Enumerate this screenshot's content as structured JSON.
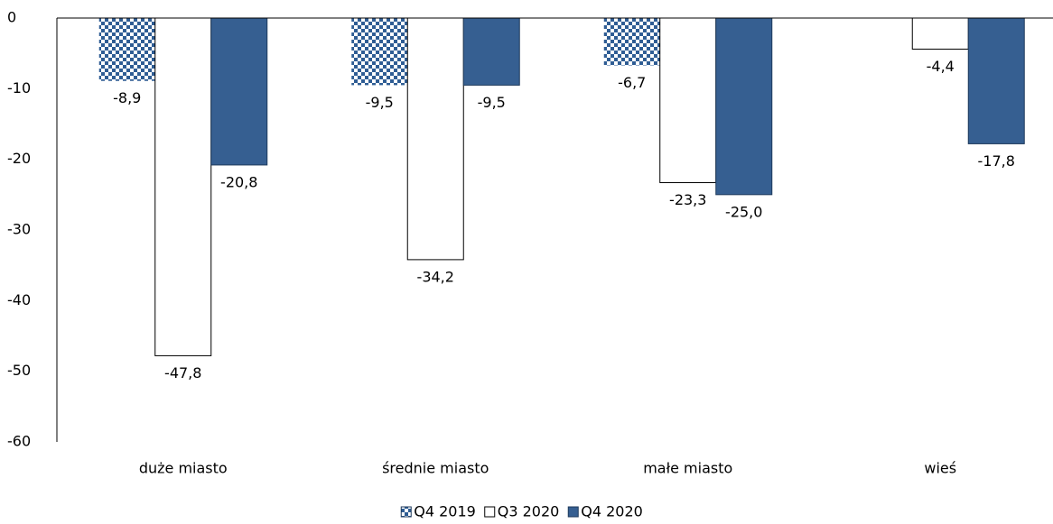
{
  "chart_data": {
    "type": "bar",
    "categories": [
      "duże miasto",
      "średnie miasto",
      "małe miasto",
      "wieś"
    ],
    "series": [
      {
        "name": "Q4 2019",
        "color": "#2f5d94",
        "pattern": "checkerboard",
        "values": [
          -8.9,
          -9.5,
          -6.7,
          null
        ],
        "value_labels": [
          "-8,9",
          "-9,5",
          "-6,7",
          null
        ]
      },
      {
        "name": "Q3 2020",
        "color": "#ffffff",
        "values": [
          -47.8,
          -34.2,
          -23.3,
          -4.4
        ],
        "value_labels": [
          "-47,8",
          "-34,2",
          "-23,3",
          "-4,4"
        ]
      },
      {
        "name": "Q4 2020",
        "color": "#365f91",
        "values": [
          -20.8,
          -9.5,
          -25.0,
          -17.8
        ],
        "value_labels": [
          "-20,8",
          "-9,5",
          "-25,0",
          "-17,8"
        ]
      }
    ],
    "ylim": [
      -60,
      0
    ],
    "yticks": [
      0,
      -10,
      -20,
      -30,
      -40,
      -50,
      -60
    ],
    "grid": false,
    "legend": "bottom"
  }
}
